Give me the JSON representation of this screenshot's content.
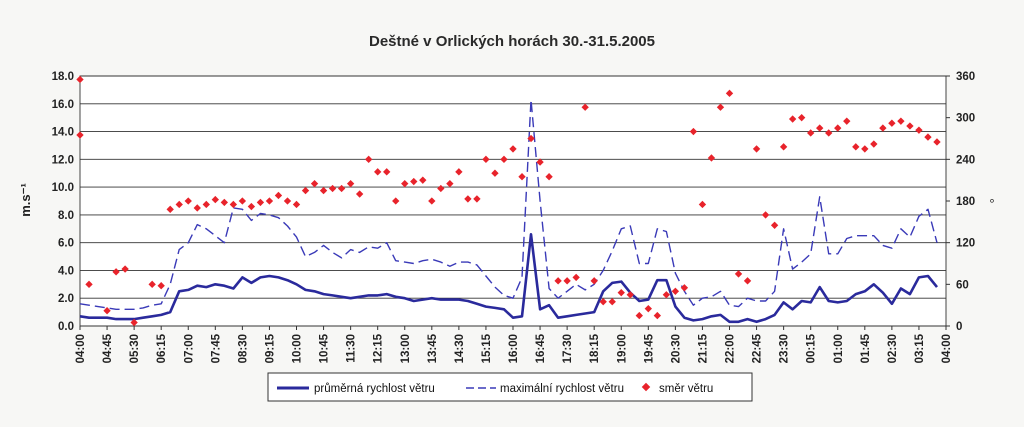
{
  "chart_data": {
    "type": "line",
    "title": "Deštné v Orlických horách 30.-31.5.2005",
    "ylabel": "m.s⁻¹",
    "y2label": "°",
    "ylim": [
      0,
      18
    ],
    "y2lim": [
      0,
      360
    ],
    "yticks": [
      "0.0",
      "2.0",
      "4.0",
      "6.0",
      "8.0",
      "10.0",
      "12.0",
      "14.0",
      "16.0",
      "18.0"
    ],
    "y2ticks": [
      "0",
      "60",
      "120",
      "180",
      "240",
      "300",
      "360"
    ],
    "x_tick_labels": [
      "04:00",
      "04:45",
      "05:30",
      "06:15",
      "07:00",
      "07:45",
      "08:30",
      "09:15",
      "10:00",
      "10:45",
      "11:30",
      "12:15",
      "13:00",
      "13:45",
      "14:30",
      "15:15",
      "16:00",
      "16:45",
      "17:30",
      "18:15",
      "19:00",
      "19:45",
      "20:30",
      "21:15",
      "22:00",
      "22:45",
      "23:30",
      "00:15",
      "01:00",
      "01:45",
      "02:30",
      "03:15",
      "04:00"
    ],
    "grid": true,
    "legend_position": "bottom",
    "series": [
      {
        "name": "průměrná rychlost větru",
        "axis": "left",
        "color": "#2a2a9c",
        "style": "solid",
        "points": [
          [
            "04:00",
            0.7
          ],
          [
            "04:15",
            0.6
          ],
          [
            "04:30",
            0.6
          ],
          [
            "04:45",
            0.6
          ],
          [
            "05:00",
            0.5
          ],
          [
            "05:15",
            0.5
          ],
          [
            "05:30",
            0.5
          ],
          [
            "05:45",
            0.6
          ],
          [
            "06:00",
            0.7
          ],
          [
            "06:15",
            0.8
          ],
          [
            "06:30",
            1.0
          ],
          [
            "06:45",
            2.5
          ],
          [
            "07:00",
            2.6
          ],
          [
            "07:15",
            2.9
          ],
          [
            "07:30",
            2.8
          ],
          [
            "07:45",
            3.0
          ],
          [
            "08:00",
            2.9
          ],
          [
            "08:15",
            2.7
          ],
          [
            "08:30",
            3.5
          ],
          [
            "08:45",
            3.1
          ],
          [
            "09:00",
            3.5
          ],
          [
            "09:15",
            3.6
          ],
          [
            "09:30",
            3.5
          ],
          [
            "09:45",
            3.3
          ],
          [
            "10:00",
            3.0
          ],
          [
            "10:15",
            2.6
          ],
          [
            "10:30",
            2.5
          ],
          [
            "10:45",
            2.3
          ],
          [
            "11:00",
            2.2
          ],
          [
            "11:15",
            2.1
          ],
          [
            "11:30",
            2.0
          ],
          [
            "11:45",
            2.1
          ],
          [
            "12:00",
            2.2
          ],
          [
            "12:15",
            2.2
          ],
          [
            "12:30",
            2.3
          ],
          [
            "12:45",
            2.1
          ],
          [
            "13:00",
            2.0
          ],
          [
            "13:15",
            1.8
          ],
          [
            "13:30",
            1.9
          ],
          [
            "13:45",
            2.0
          ],
          [
            "14:00",
            1.9
          ],
          [
            "14:15",
            1.9
          ],
          [
            "14:30",
            1.9
          ],
          [
            "14:45",
            1.8
          ],
          [
            "15:00",
            1.6
          ],
          [
            "15:15",
            1.4
          ],
          [
            "15:30",
            1.3
          ],
          [
            "15:45",
            1.2
          ],
          [
            "16:00",
            0.6
          ],
          [
            "16:15",
            0.7
          ],
          [
            "16:30",
            6.6
          ],
          [
            "16:45",
            1.2
          ],
          [
            "17:00",
            1.5
          ],
          [
            "17:15",
            0.6
          ],
          [
            "17:30",
            0.7
          ],
          [
            "17:45",
            0.8
          ],
          [
            "18:00",
            0.9
          ],
          [
            "18:15",
            1.0
          ],
          [
            "18:30",
            2.5
          ],
          [
            "18:45",
            3.1
          ],
          [
            "19:00",
            3.2
          ],
          [
            "19:15",
            2.4
          ],
          [
            "19:30",
            1.8
          ],
          [
            "19:45",
            1.9
          ],
          [
            "20:00",
            3.3
          ],
          [
            "20:15",
            3.3
          ],
          [
            "20:30",
            1.4
          ],
          [
            "20:45",
            0.6
          ],
          [
            "21:00",
            0.4
          ],
          [
            "21:15",
            0.5
          ],
          [
            "21:30",
            0.7
          ],
          [
            "21:45",
            0.8
          ],
          [
            "22:00",
            0.3
          ],
          [
            "22:15",
            0.3
          ],
          [
            "22:30",
            0.5
          ],
          [
            "22:45",
            0.3
          ],
          [
            "23:00",
            0.5
          ],
          [
            "23:15",
            0.8
          ],
          [
            "23:30",
            1.7
          ],
          [
            "23:45",
            1.2
          ],
          [
            "00:00",
            1.8
          ],
          [
            "00:15",
            1.7
          ],
          [
            "00:30",
            2.8
          ],
          [
            "00:45",
            1.8
          ],
          [
            "01:00",
            1.7
          ],
          [
            "01:15",
            1.8
          ],
          [
            "01:30",
            2.3
          ],
          [
            "01:45",
            2.5
          ],
          [
            "02:00",
            3.0
          ],
          [
            "02:15",
            2.4
          ],
          [
            "02:30",
            1.6
          ],
          [
            "02:45",
            2.7
          ],
          [
            "03:00",
            2.3
          ],
          [
            "03:15",
            3.5
          ],
          [
            "03:30",
            3.6
          ],
          [
            "03:45",
            2.8
          ]
        ]
      },
      {
        "name": "maximální rychlost větru",
        "axis": "left",
        "color": "#3a3ab8",
        "style": "dashed",
        "points": [
          [
            "04:00",
            1.6
          ],
          [
            "04:15",
            1.5
          ],
          [
            "04:30",
            1.4
          ],
          [
            "04:45",
            1.3
          ],
          [
            "05:00",
            1.2
          ],
          [
            "05:15",
            1.2
          ],
          [
            "05:30",
            1.2
          ],
          [
            "05:45",
            1.3
          ],
          [
            "06:00",
            1.5
          ],
          [
            "06:15",
            1.6
          ],
          [
            "06:30",
            3.0
          ],
          [
            "06:45",
            5.5
          ],
          [
            "07:00",
            6.0
          ],
          [
            "07:15",
            7.3
          ],
          [
            "07:30",
            7.0
          ],
          [
            "07:45",
            6.5
          ],
          [
            "08:00",
            6.0
          ],
          [
            "08:15",
            8.5
          ],
          [
            "08:30",
            8.4
          ],
          [
            "08:45",
            7.6
          ],
          [
            "09:00",
            8.1
          ],
          [
            "09:15",
            8.0
          ],
          [
            "09:30",
            7.8
          ],
          [
            "09:45",
            7.2
          ],
          [
            "10:00",
            6.4
          ],
          [
            "10:15",
            5.0
          ],
          [
            "10:30",
            5.3
          ],
          [
            "10:45",
            5.8
          ],
          [
            "11:00",
            5.3
          ],
          [
            "11:15",
            4.9
          ],
          [
            "11:30",
            5.5
          ],
          [
            "11:45",
            5.3
          ],
          [
            "12:00",
            5.7
          ],
          [
            "12:15",
            5.6
          ],
          [
            "12:30",
            6.0
          ],
          [
            "12:45",
            4.7
          ],
          [
            "13:00",
            4.6
          ],
          [
            "13:15",
            4.5
          ],
          [
            "13:30",
            4.7
          ],
          [
            "13:45",
            4.8
          ],
          [
            "14:00",
            4.6
          ],
          [
            "14:15",
            4.3
          ],
          [
            "14:30",
            4.6
          ],
          [
            "14:45",
            4.6
          ],
          [
            "15:00",
            4.4
          ],
          [
            "15:15",
            3.6
          ],
          [
            "15:30",
            2.8
          ],
          [
            "15:45",
            2.2
          ],
          [
            "16:00",
            2.0
          ],
          [
            "16:15",
            3.5
          ],
          [
            "16:30",
            16.3
          ],
          [
            "16:45",
            9.0
          ],
          [
            "17:00",
            2.7
          ],
          [
            "17:15",
            2.0
          ],
          [
            "17:30",
            2.5
          ],
          [
            "17:45",
            3.0
          ],
          [
            "18:00",
            2.6
          ],
          [
            "18:15",
            3.0
          ],
          [
            "18:30",
            4.0
          ],
          [
            "18:45",
            5.4
          ],
          [
            "19:00",
            7.0
          ],
          [
            "19:15",
            7.2
          ],
          [
            "19:30",
            4.5
          ],
          [
            "19:45",
            4.5
          ],
          [
            "20:00",
            7.0
          ],
          [
            "20:15",
            6.8
          ],
          [
            "20:30",
            3.8
          ],
          [
            "20:45",
            2.5
          ],
          [
            "21:00",
            1.5
          ],
          [
            "21:15",
            2.0
          ],
          [
            "21:30",
            2.1
          ],
          [
            "21:45",
            2.5
          ],
          [
            "22:00",
            1.5
          ],
          [
            "22:15",
            1.4
          ],
          [
            "22:30",
            2.0
          ],
          [
            "22:45",
            1.8
          ],
          [
            "23:00",
            1.8
          ],
          [
            "23:15",
            2.5
          ],
          [
            "23:30",
            7.0
          ],
          [
            "23:45",
            4.1
          ],
          [
            "00:00",
            4.6
          ],
          [
            "00:15",
            5.2
          ],
          [
            "00:30",
            9.3
          ],
          [
            "00:45",
            5.2
          ],
          [
            "01:00",
            5.2
          ],
          [
            "01:15",
            6.3
          ],
          [
            "01:30",
            6.5
          ],
          [
            "01:45",
            6.5
          ],
          [
            "02:00",
            6.5
          ],
          [
            "02:15",
            5.8
          ],
          [
            "02:30",
            5.6
          ],
          [
            "02:45",
            7.0
          ],
          [
            "03:00",
            6.4
          ],
          [
            "03:15",
            7.9
          ],
          [
            "03:30",
            8.4
          ],
          [
            "03:45",
            6.0
          ]
        ]
      },
      {
        "name": "směr větru",
        "axis": "right",
        "color": "#e8232b",
        "style": "markers",
        "points": [
          [
            "04:00",
            355
          ],
          [
            "04:15",
            60
          ],
          [
            "04:45",
            22
          ],
          [
            "05:00",
            78
          ],
          [
            "05:15",
            82
          ],
          [
            "05:30",
            5
          ],
          [
            "06:00",
            60
          ],
          [
            "06:15",
            58
          ],
          [
            "06:30",
            168
          ],
          [
            "06:45",
            175
          ],
          [
            "07:00",
            180
          ],
          [
            "07:15",
            170
          ],
          [
            "07:30",
            175
          ],
          [
            "07:45",
            182
          ],
          [
            "08:00",
            178
          ],
          [
            "08:15",
            175
          ],
          [
            "08:30",
            180
          ],
          [
            "08:45",
            172
          ],
          [
            "09:00",
            178
          ],
          [
            "09:15",
            180
          ],
          [
            "09:30",
            188
          ],
          [
            "09:45",
            180
          ],
          [
            "10:00",
            175
          ],
          [
            "10:15",
            195
          ],
          [
            "10:30",
            205
          ],
          [
            "10:45",
            195
          ],
          [
            "11:00",
            198
          ],
          [
            "11:15",
            198
          ],
          [
            "11:30",
            205
          ],
          [
            "11:45",
            190
          ],
          [
            "12:00",
            240
          ],
          [
            "12:15",
            222
          ],
          [
            "12:30",
            222
          ],
          [
            "12:45",
            180
          ],
          [
            "13:00",
            205
          ],
          [
            "13:15",
            208
          ],
          [
            "13:30",
            210
          ],
          [
            "13:45",
            180
          ],
          [
            "14:00",
            198
          ],
          [
            "14:15",
            205
          ],
          [
            "14:30",
            222
          ],
          [
            "14:45",
            183
          ],
          [
            "15:00",
            183
          ],
          [
            "15:15",
            240
          ],
          [
            "15:30",
            220
          ],
          [
            "15:45",
            240
          ],
          [
            "16:00",
            255
          ],
          [
            "16:15",
            215
          ],
          [
            "16:30",
            270
          ],
          [
            "16:45",
            236
          ],
          [
            "17:00",
            215
          ],
          [
            "17:15",
            65
          ],
          [
            "17:30",
            65
          ],
          [
            "17:45",
            70
          ],
          [
            "18:00",
            315
          ],
          [
            "18:15",
            65
          ],
          [
            "18:30",
            35
          ],
          [
            "18:45",
            35
          ],
          [
            "19:00",
            48
          ],
          [
            "19:15",
            45
          ],
          [
            "19:30",
            15
          ],
          [
            "19:45",
            25
          ],
          [
            "20:00",
            15
          ],
          [
            "20:15",
            45
          ],
          [
            "20:30",
            50
          ],
          [
            "20:45",
            55
          ],
          [
            "21:00",
            280
          ],
          [
            "21:15",
            175
          ],
          [
            "21:30",
            242
          ],
          [
            "21:45",
            315
          ],
          [
            "22:00",
            335
          ],
          [
            "22:15",
            75
          ],
          [
            "22:30",
            65
          ],
          [
            "22:45",
            255
          ],
          [
            "23:00",
            160
          ],
          [
            "23:15",
            145
          ],
          [
            "23:30",
            258
          ],
          [
            "23:45",
            298
          ],
          [
            "00:00",
            300
          ],
          [
            "00:15",
            278
          ],
          [
            "00:30",
            285
          ],
          [
            "00:45",
            278
          ],
          [
            "01:00",
            285
          ],
          [
            "01:15",
            295
          ],
          [
            "01:30",
            258
          ],
          [
            "01:45",
            255
          ],
          [
            "02:00",
            262
          ],
          [
            "02:15",
            285
          ],
          [
            "02:30",
            292
          ],
          [
            "02:45",
            295
          ],
          [
            "03:00",
            288
          ],
          [
            "03:15",
            282
          ],
          [
            "03:30",
            272
          ],
          [
            "03:45",
            265
          ],
          [
            "04:00",
            275
          ]
        ]
      }
    ]
  }
}
